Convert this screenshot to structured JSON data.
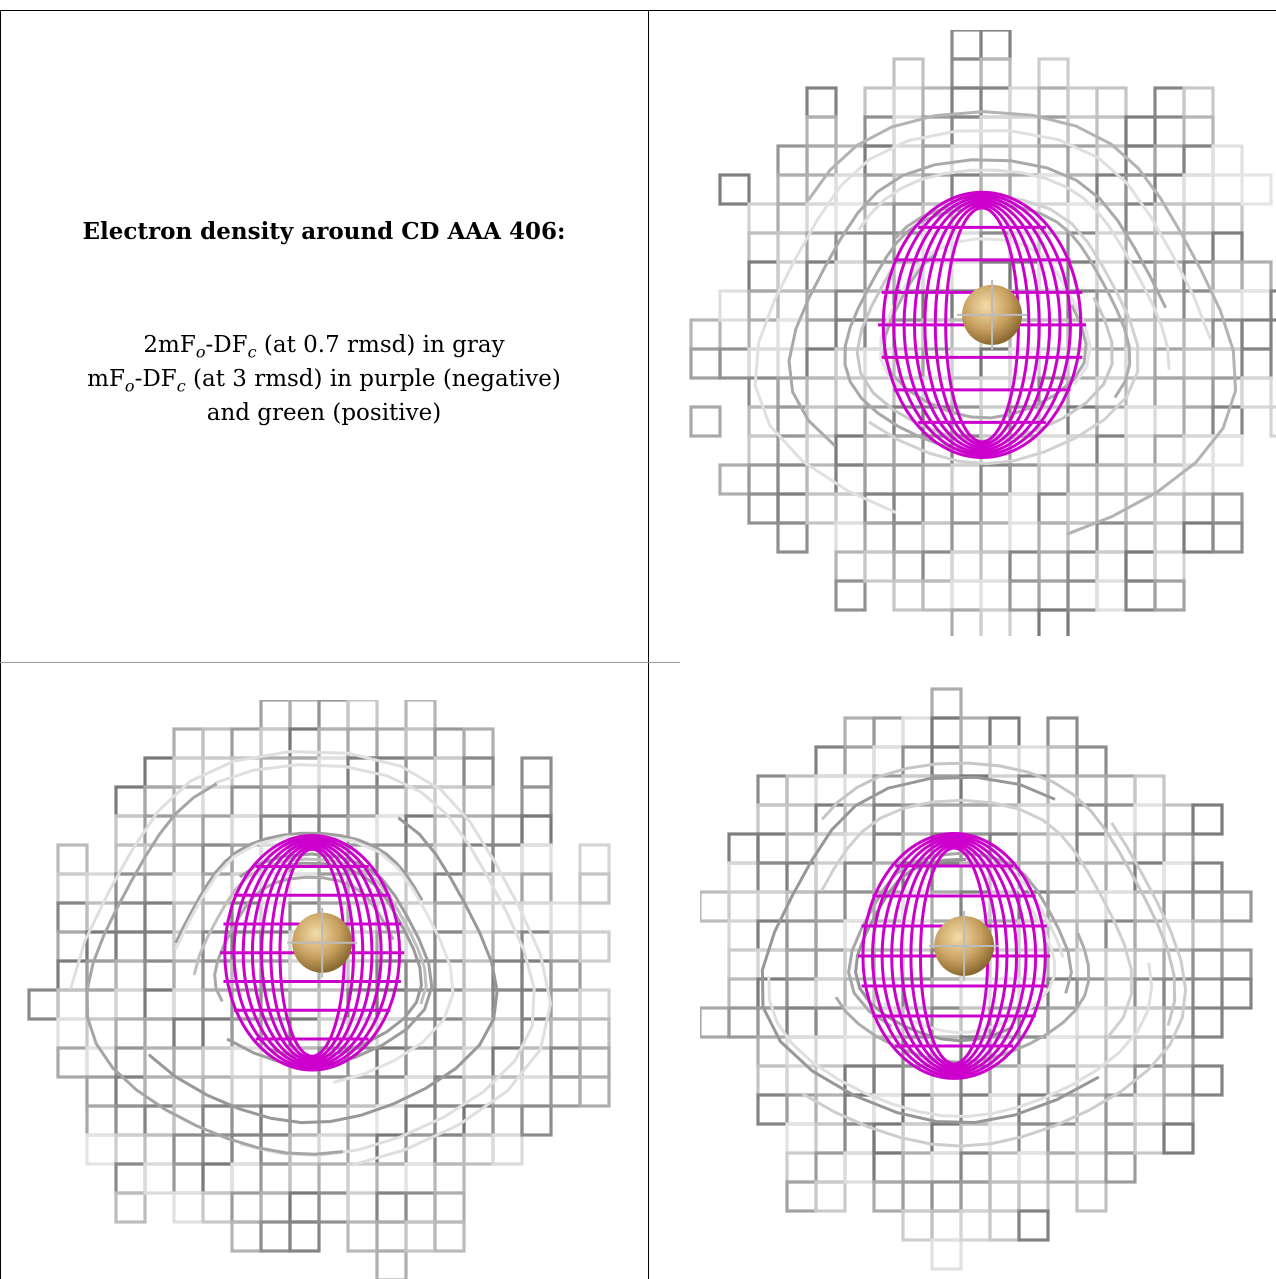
{
  "caption": {
    "title": "Electron density around CD AAA 406:",
    "line1": {
      "a": "2mF",
      "b": "o",
      "c": "-DF",
      "d": "c",
      "e": " (at 0.7 rmsd) in gray"
    },
    "line2": {
      "a": "mF",
      "b": "o",
      "c": "-DF",
      "d": "c",
      "e": " (at 3 rmsd) in purple (negative)"
    },
    "line3": "and green (positive)"
  },
  "colors": {
    "gray_mesh": "#8a8a8a",
    "purple_mesh": "#cc00cc",
    "atom": "#c8a060"
  }
}
